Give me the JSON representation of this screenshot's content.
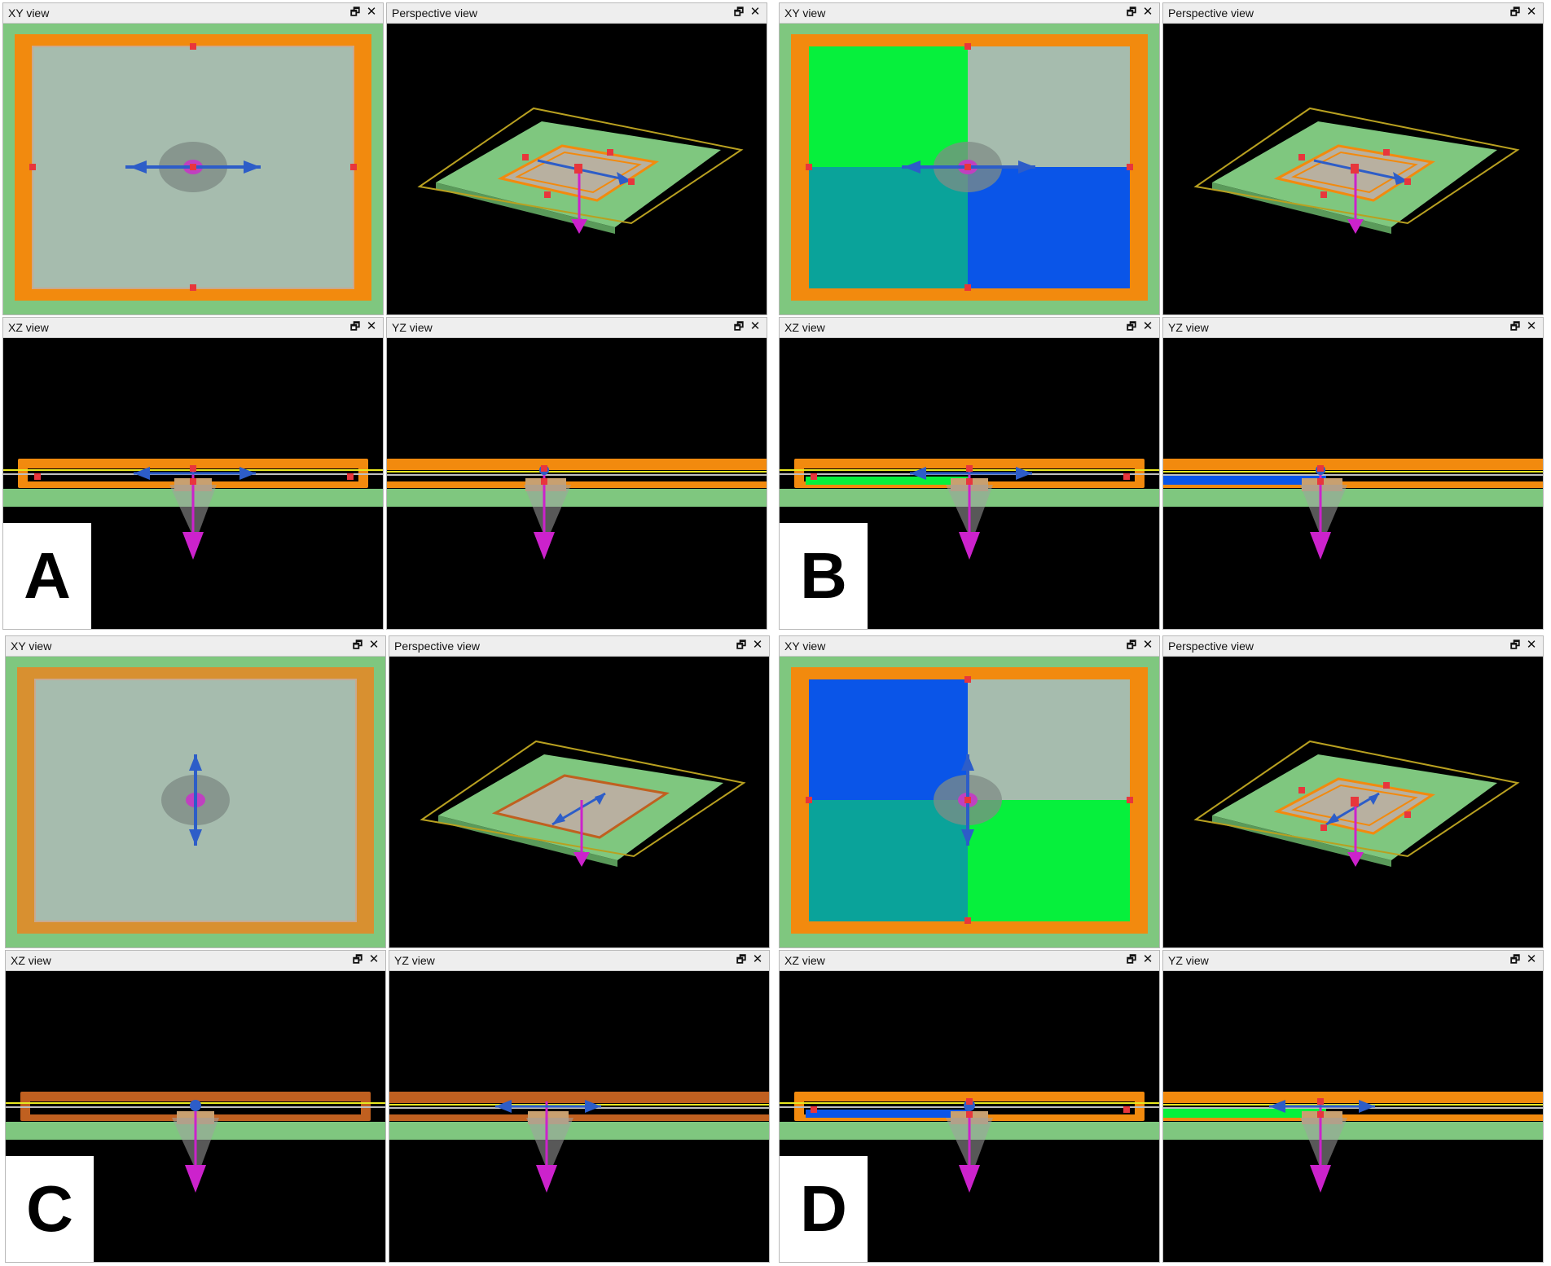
{
  "panels": [
    {
      "id": "a",
      "letter": "A",
      "views": {
        "xy": "XY view",
        "persp": "Perspective view",
        "xz": "XZ view",
        "yz": "YZ view"
      }
    },
    {
      "id": "b",
      "letter": "B",
      "views": {
        "xy": "XY view",
        "persp": "Perspective view",
        "xz": "XZ view",
        "yz": "YZ view"
      }
    },
    {
      "id": "c",
      "letter": "C",
      "views": {
        "xy": "XY view",
        "persp": "Perspective view",
        "xz": "XZ view",
        "yz": "YZ view"
      }
    },
    {
      "id": "d",
      "letter": "D",
      "views": {
        "xy": "XY view",
        "persp": "Perspective view",
        "xz": "XZ view",
        "yz": "YZ view"
      }
    }
  ],
  "icons": {
    "restore": "restore-window-icon",
    "close": "close-icon"
  },
  "glyphs": {
    "restore": "🗗",
    "close": "✕"
  },
  "colors": {
    "orange": "#f28a0e",
    "green_border": "#7fc77f",
    "plate": "#a6bcae",
    "bright_green": "#06f03c",
    "teal": "#0aa39a",
    "blue": "#0a55e8",
    "arrow_blue": "#2d5dc8",
    "magenta": "#cc22cc",
    "handle_red": "#e8363c"
  }
}
